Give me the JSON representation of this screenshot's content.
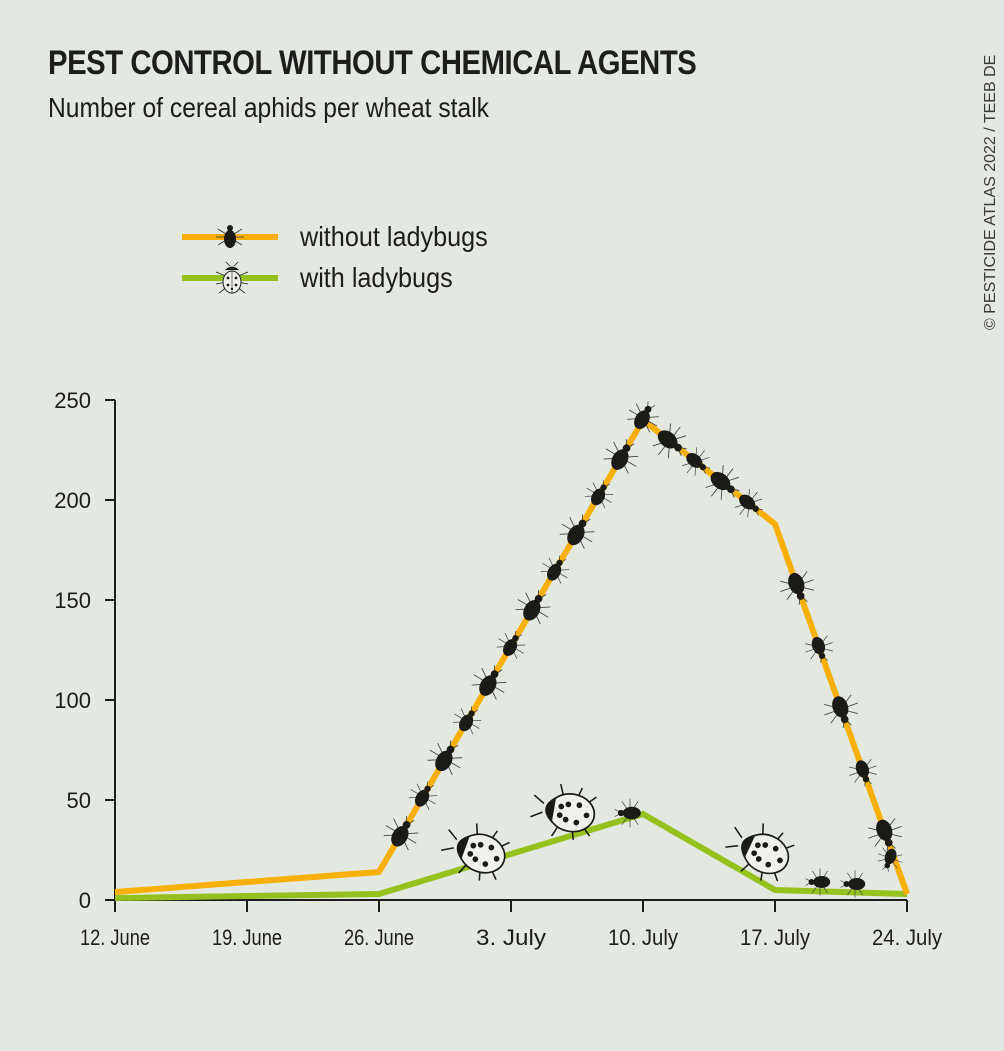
{
  "title": "PEST CONTROL WITHOUT CHEMICAL AGENTS",
  "subtitle": "Number of cereal aphids per wheat stalk",
  "credit": "© PESTICIDE ATLAS 2022 / TEEB DE",
  "chart_data": {
    "type": "line",
    "title": "PEST CONTROL WITHOUT CHEMICAL AGENTS",
    "subtitle": "Number of cereal aphids per wheat stalk",
    "x": [
      "12. June",
      "19. June",
      "26. June",
      "3. July",
      "10. July",
      "17. July",
      "24. July"
    ],
    "xticks": [
      "12. June",
      "19. June",
      "26. June",
      "3. July",
      "10. July",
      "17. July",
      "24. July"
    ],
    "ylim": [
      0,
      250
    ],
    "yticks": [
      0,
      50,
      100,
      150,
      200,
      250
    ],
    "grid": false,
    "legend_position": "top-left",
    "series": [
      {
        "name": "without ladybugs",
        "color": "#f9b000",
        "icon": "aphid-icon",
        "points": [
          [
            "12. June",
            4
          ],
          [
            "26. June",
            14
          ],
          [
            "10. July",
            240
          ],
          [
            "17. July",
            188
          ],
          [
            "24. July",
            3
          ]
        ]
      },
      {
        "name": "with ladybugs",
        "color": "#95c11f",
        "icon": "ladybug-icon",
        "points": [
          [
            "12. June",
            1
          ],
          [
            "26. June",
            3
          ],
          [
            "10. July",
            43
          ],
          [
            "17. July",
            5
          ],
          [
            "24. July",
            3
          ]
        ]
      }
    ]
  }
}
